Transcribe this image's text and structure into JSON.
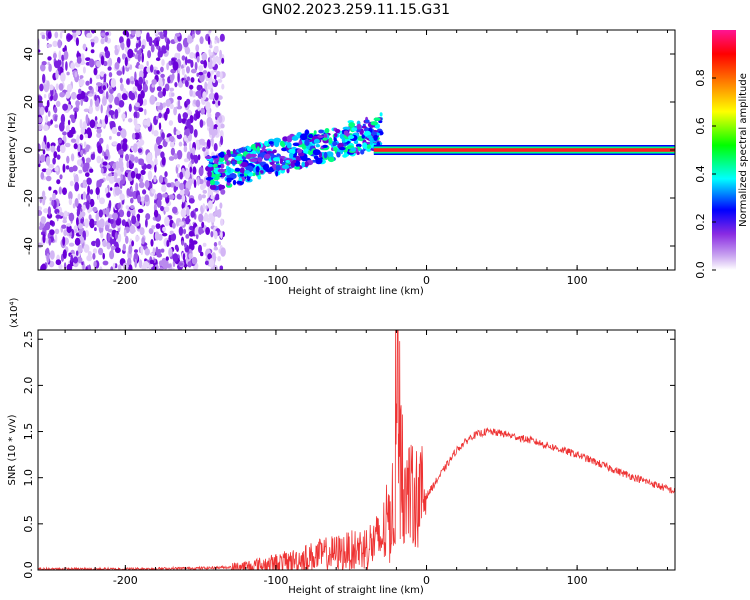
{
  "title": "GN02.2023.259.11.15.G31",
  "chart_data": [
    {
      "type": "heatmap",
      "xlabel": "Height of straight line (km)",
      "ylabel": "Frequency (Hz)",
      "xlim": [
        -258,
        165
      ],
      "ylim": [
        -50,
        50
      ],
      "xticks": [
        -200,
        -100,
        0,
        100
      ],
      "yticks": [
        -40,
        -20,
        0,
        20,
        40
      ],
      "colorbar": {
        "label": "Normalized spectral amplitude",
        "range": [
          0,
          1
        ],
        "ticks": [
          "0.0",
          "0.2",
          "0.4",
          "0.6",
          "0.8"
        ],
        "tick_values": [
          0.0,
          0.2,
          0.4,
          0.6,
          0.8
        ],
        "colors": [
          "#ffffff",
          "#8a2be2",
          "#0000ff",
          "#00ffff",
          "#00ff00",
          "#ffff00",
          "#ff8000",
          "#ff0000",
          "#ff1493"
        ]
      },
      "features": {
        "noise_region_x": [
          -258,
          -135
        ],
        "drift_band_x": [
          -145,
          -30
        ],
        "drift_band_y_start": -10,
        "drift_band_y_end": 8,
        "carrier_x": [
          -35,
          165
        ],
        "carrier_y": 0
      }
    },
    {
      "type": "line",
      "xlabel": "Height of straight line (km)",
      "ylabel": "SNR (10 * v/v)",
      "multiplier_label": "(x10⁴)",
      "xlim": [
        -258,
        165
      ],
      "ylim": [
        0,
        2.6
      ],
      "xticks": [
        -200,
        -100,
        0,
        100
      ],
      "yticks": [
        0.0,
        0.5,
        1.0,
        1.5,
        2.0,
        2.5
      ],
      "series": [
        {
          "color": "#ee3333",
          "x": [
            -258,
            -200,
            -150,
            -130,
            -110,
            -90,
            -70,
            -50,
            -40,
            -30,
            -22,
            -19,
            -17,
            -14,
            -10,
            0,
            10,
            20,
            30,
            40,
            50,
            70,
            100,
            130,
            165
          ],
          "y": [
            0.01,
            0.01,
            0.02,
            0.03,
            0.07,
            0.12,
            0.2,
            0.25,
            0.3,
            0.4,
            0.8,
            2.6,
            1.2,
            0.9,
            0.8,
            0.8,
            1.05,
            1.3,
            1.45,
            1.5,
            1.48,
            1.4,
            1.25,
            1.05,
            0.85
          ]
        }
      ]
    }
  ]
}
